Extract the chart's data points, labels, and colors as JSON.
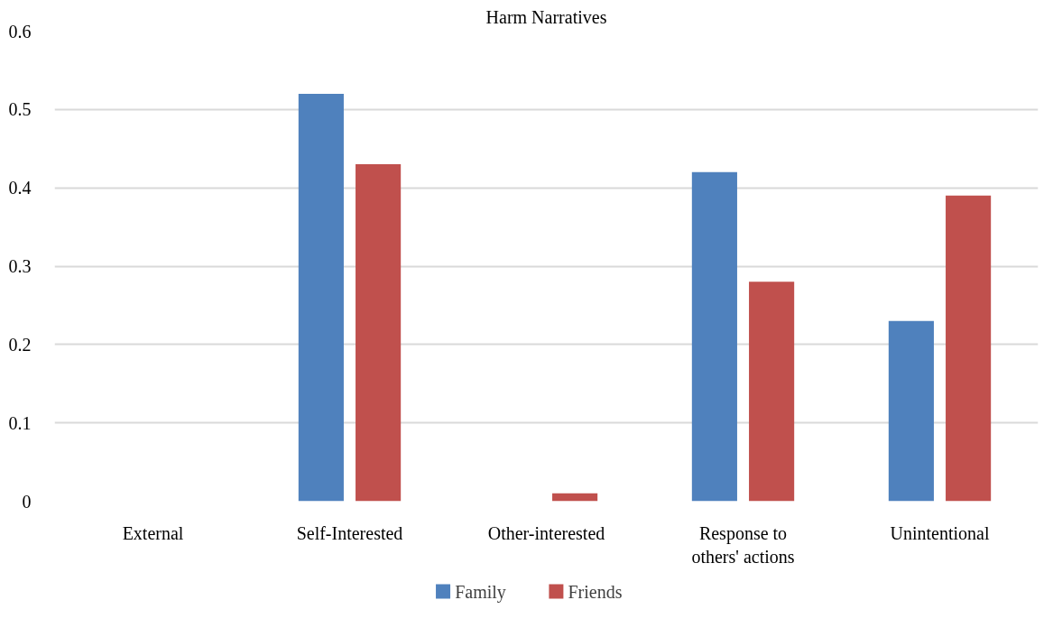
{
  "chart_data": {
    "type": "bar",
    "title": "Harm Narratives",
    "categories": [
      "External",
      "Self-Interested",
      "Other-interested",
      "Response to others' actions",
      "Unintentional"
    ],
    "series": [
      {
        "name": "Family",
        "color": "#4f81bd",
        "values": [
          0,
          0.52,
          0,
          0.42,
          0.23
        ]
      },
      {
        "name": "Friends",
        "color": "#c0504d",
        "values": [
          0,
          0.43,
          0.01,
          0.28,
          0.39
        ]
      }
    ],
    "ylim": [
      0,
      0.6
    ],
    "yticks": [
      0,
      0.1,
      0.2,
      0.3,
      0.4,
      0.5,
      0.6
    ],
    "grid": "y",
    "legend": "bottom"
  }
}
